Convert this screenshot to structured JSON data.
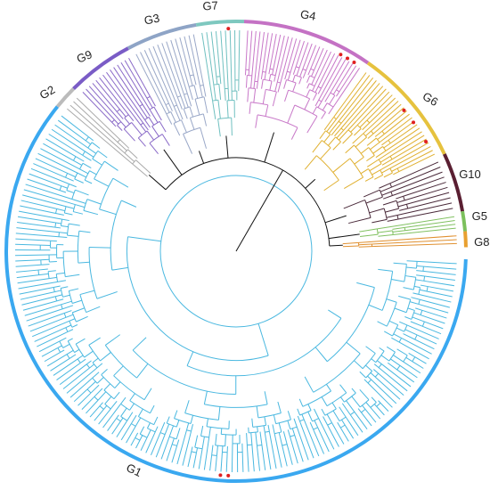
{
  "groups": [
    {
      "label": "G1"
    },
    {
      "label": "G2"
    },
    {
      "label": "G9"
    },
    {
      "label": "G3"
    },
    {
      "label": "G7"
    },
    {
      "label": "G4"
    },
    {
      "label": "G6"
    },
    {
      "label": "G10"
    },
    {
      "label": "G5"
    },
    {
      "label": "G8"
    }
  ]
}
